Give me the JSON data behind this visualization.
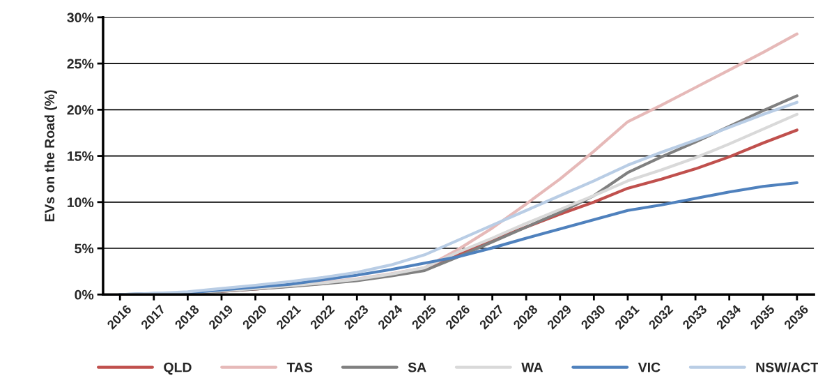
{
  "chart_data": {
    "type": "line",
    "ylabel": "EVs on the Road (%)",
    "categories": [
      "2016",
      "2017",
      "2018",
      "2019",
      "2020",
      "2021",
      "2022",
      "2023",
      "2024",
      "2025",
      "2026",
      "2027",
      "2028",
      "2029",
      "2030",
      "2031",
      "2032",
      "2033",
      "2034",
      "2035",
      "2036"
    ],
    "series": [
      {
        "name": "QLD",
        "color": "#c0504d",
        "values": [
          null,
          null,
          null,
          0.35,
          0.6,
          0.9,
          1.2,
          1.6,
          2.1,
          2.8,
          4.4,
          5.9,
          7.3,
          8.7,
          10.0,
          11.5,
          12.5,
          13.6,
          14.9,
          16.4,
          17.8
        ]
      },
      {
        "name": "TAS",
        "color": "#e6b9b8",
        "values": [
          0,
          0.05,
          null,
          0.4,
          0.65,
          0.95,
          1.3,
          1.7,
          2.25,
          2.9,
          4.9,
          7.2,
          9.8,
          12.5,
          15.5,
          18.7,
          20.5,
          22.4,
          24.3,
          26.2,
          28.2
        ]
      },
      {
        "name": "SA",
        "color": "#808080",
        "values": [
          0,
          0.05,
          0.15,
          0.35,
          0.6,
          0.85,
          1.15,
          1.5,
          2.0,
          2.6,
          4.1,
          5.7,
          7.3,
          8.9,
          10.7,
          13.2,
          14.9,
          16.5,
          18.2,
          19.9,
          21.5
        ]
      },
      {
        "name": "WA",
        "color": "#d9d9d9",
        "values": [
          0,
          0.05,
          0.2,
          0.4,
          0.65,
          0.95,
          1.25,
          1.65,
          2.2,
          2.9,
          4.6,
          6.1,
          7.7,
          9.2,
          10.7,
          12.3,
          13.5,
          14.8,
          16.3,
          17.9,
          19.5
        ]
      },
      {
        "name": "VIC",
        "color": "#4f81bd",
        "values": [
          0,
          0.1,
          0.2,
          0.5,
          0.8,
          1.1,
          1.6,
          2.1,
          2.7,
          3.4,
          4.1,
          5.05,
          6.1,
          7.1,
          8.1,
          9.1,
          9.7,
          10.4,
          11.1,
          11.7,
          12.1
        ]
      },
      {
        "name": "NSW/ACT",
        "color": "#b9cde5",
        "values": [
          0,
          0.12,
          0.3,
          0.65,
          1.0,
          1.4,
          1.85,
          2.4,
          3.2,
          4.3,
          5.9,
          7.5,
          9.1,
          10.7,
          12.3,
          14.0,
          15.4,
          16.7,
          18.1,
          19.5,
          20.8
        ]
      }
    ],
    "ylim": [
      0,
      30
    ],
    "yticks": [
      {
        "value": 0,
        "label": "0%"
      },
      {
        "value": 5,
        "label": "5%"
      },
      {
        "value": 10,
        "label": "10%"
      },
      {
        "value": 15,
        "label": "15%"
      },
      {
        "value": 20,
        "label": "20%"
      },
      {
        "value": 25,
        "label": "25%"
      },
      {
        "value": 30,
        "label": "30%"
      }
    ],
    "grid": "y",
    "legend": "bottom",
    "marker": "none",
    "line_style": "solid"
  }
}
